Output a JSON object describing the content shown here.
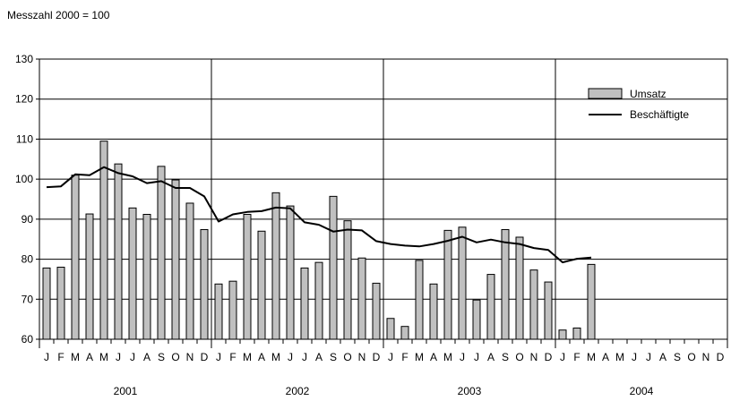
{
  "chart_data": {
    "type": "bar",
    "subtitle": "Messzahl 2000 = 100",
    "ylim": [
      60,
      130
    ],
    "y_ticks": [
      60,
      70,
      80,
      90,
      100,
      110,
      120,
      130
    ],
    "grid": true,
    "legend_position": "top-right",
    "month_labels": [
      "J",
      "F",
      "M",
      "A",
      "M",
      "J",
      "J",
      "A",
      "S",
      "O",
      "N",
      "D",
      "J",
      "F",
      "M",
      "A",
      "M",
      "J",
      "J",
      "A",
      "S",
      "O",
      "N",
      "D",
      "J",
      "F",
      "M",
      "A",
      "M",
      "J",
      "J",
      "A",
      "S",
      "O",
      "N",
      "D",
      "J",
      "F",
      "M",
      "A",
      "M",
      "J",
      "J",
      "A",
      "S",
      "O",
      "N",
      "D"
    ],
    "year_labels": [
      "2001",
      "2002",
      "2003",
      "2004"
    ],
    "series": [
      {
        "name": "Umsatz",
        "type": "bar",
        "color": "#c0c0c0",
        "values": [
          77.8,
          78,
          101,
          91.3,
          109.5,
          103.8,
          92.8,
          91.2,
          103.2,
          99.8,
          94,
          87.4,
          73.8,
          74.5,
          91.2,
          87,
          96.6,
          93.3,
          77.8,
          79.2,
          95.7,
          89.6,
          80.3,
          74,
          65.2,
          63.2,
          79.7,
          73.8,
          87.2,
          88,
          69.8,
          76.2,
          87.4,
          85.5,
          77.3,
          74.3,
          62.3,
          62.8,
          78.7
        ]
      },
      {
        "name": "Beschäftigte",
        "type": "line",
        "color": "#000000",
        "values": [
          98,
          98.2,
          101.2,
          101,
          103,
          101.5,
          100.7,
          99,
          99.5,
          97.8,
          97.8,
          95.7,
          89.4,
          91.2,
          91.8,
          92,
          92.9,
          92.7,
          89.2,
          88.6,
          86.9,
          87.4,
          87.2,
          84.5,
          83.8,
          83.4,
          83.2,
          83.8,
          84.6,
          85.6,
          84.2,
          84.9,
          84.2,
          83.8,
          82.8,
          82.3,
          79.2,
          80.1,
          80.4
        ]
      }
    ]
  }
}
